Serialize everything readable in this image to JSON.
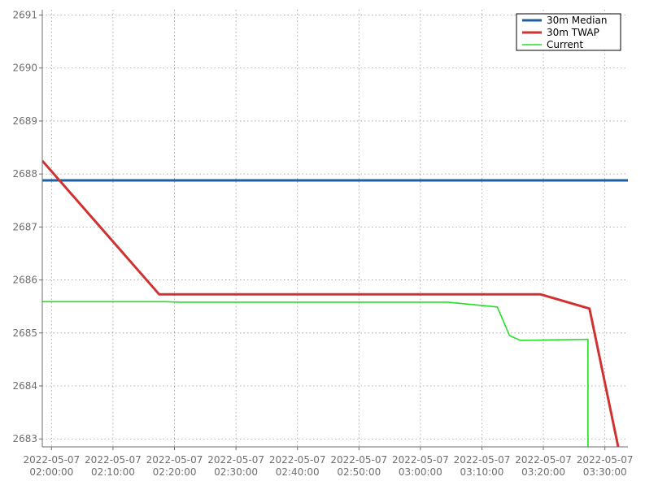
{
  "chart_data": {
    "type": "line",
    "title": "",
    "xlabel": "",
    "ylabel": "",
    "xlim": [
      "2022-05-07 01:58:30",
      "2022-05-07 03:33:45"
    ],
    "ylim": [
      2682.85,
      2691.1
    ],
    "grid": true,
    "legend_position": "top-right",
    "y_ticks": [
      "2683",
      "2684",
      "2685",
      "2686",
      "2687",
      "2688",
      "2689",
      "2690",
      "2691"
    ],
    "x_ticks": [
      {
        "t": "2022-05-07 02:00:00",
        "line1": "2022-05-07",
        "line2": "02:00:00"
      },
      {
        "t": "2022-05-07 02:10:00",
        "line1": "2022-05-07",
        "line2": "02:10:00"
      },
      {
        "t": "2022-05-07 02:20:00",
        "line1": "2022-05-07",
        "line2": "02:20:00"
      },
      {
        "t": "2022-05-07 02:30:00",
        "line1": "2022-05-07",
        "line2": "02:30:00"
      },
      {
        "t": "2022-05-07 02:40:00",
        "line1": "2022-05-07",
        "line2": "02:40:00"
      },
      {
        "t": "2022-05-07 02:50:00",
        "line1": "2022-05-07",
        "line2": "02:50:00"
      },
      {
        "t": "2022-05-07 03:00:00",
        "line1": "2022-05-07",
        "line2": "03:00:00"
      },
      {
        "t": "2022-05-07 03:10:00",
        "line1": "2022-05-07",
        "line2": "03:10:00"
      },
      {
        "t": "2022-05-07 03:20:00",
        "line1": "2022-05-07",
        "line2": "03:20:00"
      },
      {
        "t": "2022-05-07 03:30:00",
        "line1": "2022-05-07",
        "line2": "03:30:00"
      }
    ],
    "series": [
      {
        "name": "30m Median",
        "color": "#1f5fa0",
        "width": 3,
        "points": [
          {
            "x": "2022-05-07 01:58:30",
            "y": 2687.88
          },
          {
            "x": "2022-05-07 03:33:45",
            "y": 2687.88
          }
        ]
      },
      {
        "name": "30m TWAP",
        "color": "#d03232",
        "width": 3,
        "points": [
          {
            "x": "2022-05-07 01:58:30",
            "y": 2688.25
          },
          {
            "x": "2022-05-07 02:17:30",
            "y": 2685.73
          },
          {
            "x": "2022-05-07 03:19:30",
            "y": 2685.73
          },
          {
            "x": "2022-05-07 03:27:30",
            "y": 2685.46
          },
          {
            "x": "2022-05-07 03:32:10",
            "y": 2682.85
          }
        ]
      },
      {
        "name": "Current",
        "color": "#22e022",
        "width": 1.6,
        "points": [
          {
            "x": "2022-05-07 01:58:30",
            "y": 2685.59
          },
          {
            "x": "2022-05-07 02:18:30",
            "y": 2685.59
          },
          {
            "x": "2022-05-07 02:21:00",
            "y": 2685.58
          },
          {
            "x": "2022-05-07 03:04:30",
            "y": 2685.58
          },
          {
            "x": "2022-05-07 03:12:30",
            "y": 2685.49
          },
          {
            "x": "2022-05-07 03:14:30",
            "y": 2684.95
          },
          {
            "x": "2022-05-07 03:16:15",
            "y": 2684.86
          },
          {
            "x": "2022-05-07 03:27:15",
            "y": 2684.88
          },
          {
            "x": "2022-05-07 03:27:15",
            "y": 2682.85
          }
        ]
      }
    ]
  }
}
